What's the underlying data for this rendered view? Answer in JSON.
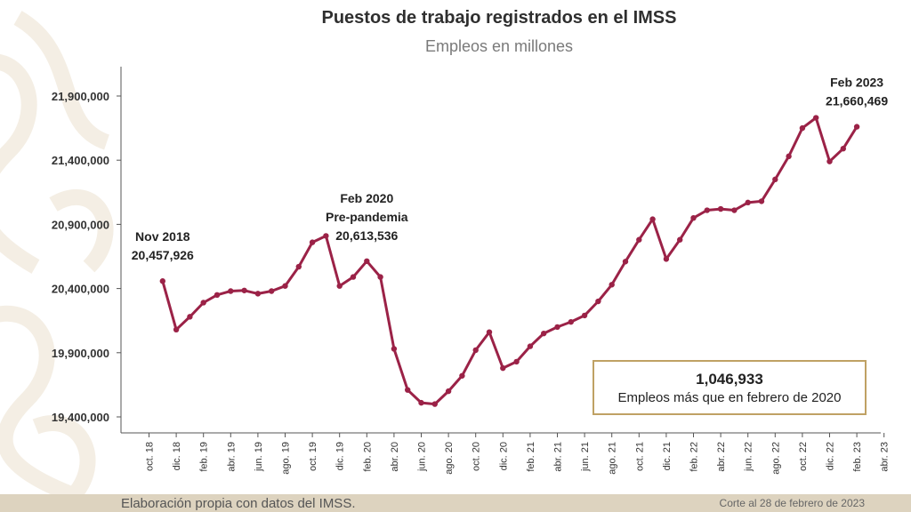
{
  "header": {
    "title": "Puestos de trabajo registrados en el IMSS",
    "subtitle": "Empleos en millones"
  },
  "colors": {
    "line": "#9b2247",
    "callout_border": "#bfa164",
    "footer_bg": "#ddd3bf"
  },
  "chart_data": {
    "type": "line",
    "title": "Puestos de trabajo registrados en el IMSS",
    "subtitle": "Empleos en millones",
    "ylim": [
      19300000,
      22000000
    ],
    "yticks": [
      19400000,
      19900000,
      20400000,
      20900000,
      21400000,
      21900000
    ],
    "ytick_labels": [
      "19,400,000",
      "19,900,000",
      "20,400,000",
      "20,900,000",
      "21,400,000",
      "21,900,000"
    ],
    "x_tick_labels": [
      "oct. 18",
      "dic. 18",
      "feb. 19",
      "abr. 19",
      "jun. 19",
      "ago. 19",
      "oct. 19",
      "dic. 19",
      "feb. 20",
      "abr. 20",
      "jun. 20",
      "ago. 20",
      "oct. 20",
      "dic. 20",
      "feb. 21",
      "abr. 21",
      "jun. 21",
      "ago. 21",
      "oct. 21",
      "dic. 21",
      "feb. 22",
      "abr. 22",
      "jun. 22",
      "ago. 22",
      "oct. 22",
      "dic. 22",
      "feb. 23",
      "abr. 23"
    ],
    "x_start_index": 1,
    "series": [
      {
        "name": "Puestos de trabajo",
        "values": [
          20457926,
          20080000,
          20180000,
          20290000,
          20350000,
          20380000,
          20385000,
          20360000,
          20380000,
          20420000,
          20570000,
          20760000,
          20810000,
          20420000,
          20490000,
          20613536,
          20490000,
          19930000,
          19610000,
          19510000,
          19500000,
          19600000,
          19720000,
          19920000,
          20060000,
          19780000,
          19830000,
          19950000,
          20050000,
          20100000,
          20140000,
          20190000,
          20300000,
          20430000,
          20610000,
          20780000,
          20940000,
          20630000,
          20780000,
          20950000,
          21010000,
          21020000,
          21010000,
          21070000,
          21080000,
          21250000,
          21430000,
          21650000,
          21730000,
          21390000,
          21490000,
          21660469
        ]
      }
    ],
    "annotations": [
      {
        "index": 0,
        "lines": [
          "Nov 2018",
          "20,457,926"
        ]
      },
      {
        "index": 15,
        "lines": [
          "Feb 2020",
          "Pre-pandemia",
          "20,613,536"
        ]
      },
      {
        "index": 51,
        "lines": [
          "Feb 2023",
          "21,660,469"
        ]
      }
    ]
  },
  "callout": {
    "value": "1,046,933",
    "text": "Empleos más que en febrero de 2020"
  },
  "footer": {
    "source": "Elaboración propia con datos del IMSS.",
    "cutoff": "Corte al 28 de febrero de 2023"
  }
}
